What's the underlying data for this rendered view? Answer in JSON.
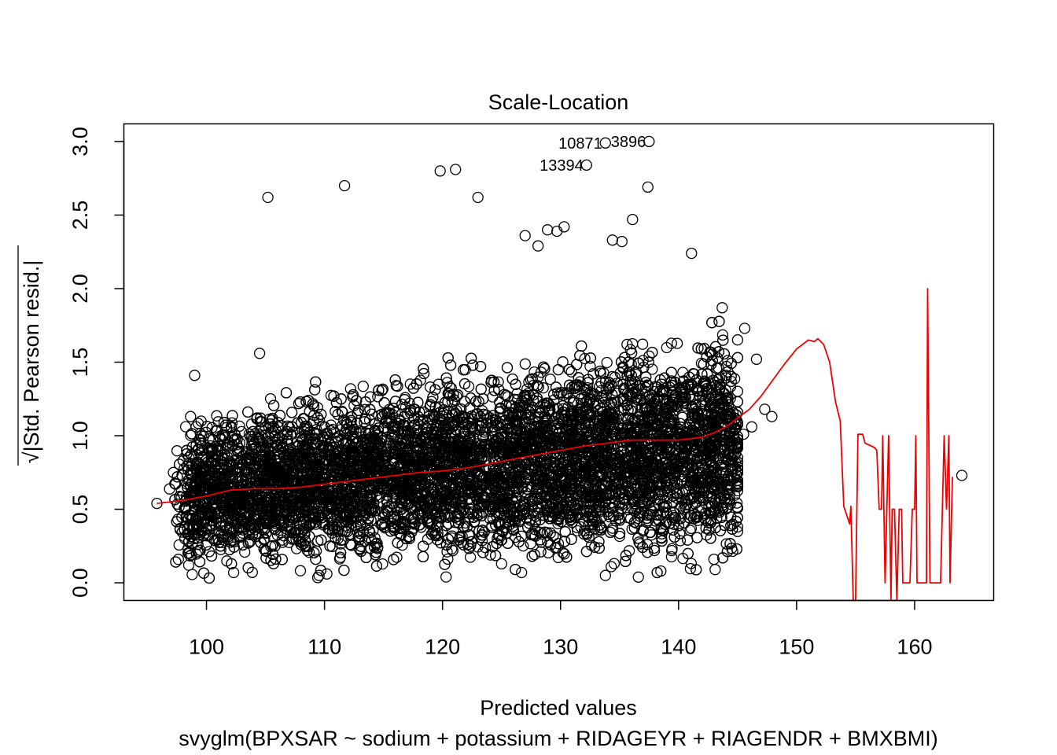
{
  "chart_data": {
    "type": "scatter",
    "title": "Scale-Location",
    "xlabel": "Predicted values",
    "sublabel": "svyglm(BPXSAR ~ sodium + potassium + RIDAGEYR + RIAGENDR + BMXBMI)",
    "ylabel_radical": "√",
    "ylabel": "|Std. Pearson resid.|",
    "xlim": [
      93,
      166.7
    ],
    "ylim": [
      -0.12,
      3.12
    ],
    "x_ticks": [
      {
        "value": 100,
        "label": "100"
      },
      {
        "value": 110,
        "label": "110"
      },
      {
        "value": 120,
        "label": "120"
      },
      {
        "value": 130,
        "label": "130"
      },
      {
        "value": 140,
        "label": "140"
      },
      {
        "value": 150,
        "label": "150"
      },
      {
        "value": 160,
        "label": "160"
      }
    ],
    "y_ticks": [
      {
        "value": 0.0,
        "label": "0.0"
      },
      {
        "value": 0.5,
        "label": "0.5"
      },
      {
        "value": 1.0,
        "label": "1.0"
      },
      {
        "value": 1.5,
        "label": "1.5"
      },
      {
        "value": 2.0,
        "label": "2.0"
      },
      {
        "value": 2.5,
        "label": "2.5"
      },
      {
        "value": 3.0,
        "label": "3.0"
      }
    ],
    "dense_cloud": {
      "x_range": [
        98,
        145
      ],
      "point_count": 9000,
      "y_center_start": 0.62,
      "y_center_end": 0.95,
      "y_spread_start": 0.38,
      "y_spread_end": 0.55
    },
    "outlier_points": [
      {
        "x": 95.8,
        "y": 0.54
      },
      {
        "x": 97.2,
        "y": 0.75
      },
      {
        "x": 98.5,
        "y": 0.12
      },
      {
        "x": 99.0,
        "y": 1.41
      },
      {
        "x": 104.5,
        "y": 1.56
      },
      {
        "x": 105.2,
        "y": 2.62
      },
      {
        "x": 111.7,
        "y": 2.7
      },
      {
        "x": 119.8,
        "y": 2.8
      },
      {
        "x": 121.1,
        "y": 2.81
      },
      {
        "x": 123.0,
        "y": 2.62
      },
      {
        "x": 127.0,
        "y": 2.36
      },
      {
        "x": 128.1,
        "y": 2.29
      },
      {
        "x": 128.9,
        "y": 2.4
      },
      {
        "x": 129.7,
        "y": 2.39
      },
      {
        "x": 130.3,
        "y": 2.42
      },
      {
        "x": 132.2,
        "y": 2.84
      },
      {
        "x": 133.8,
        "y": 2.99
      },
      {
        "x": 137.5,
        "y": 3.0
      },
      {
        "x": 137.4,
        "y": 2.69
      },
      {
        "x": 136.1,
        "y": 2.47
      },
      {
        "x": 134.4,
        "y": 2.33
      },
      {
        "x": 135.2,
        "y": 2.32
      },
      {
        "x": 141.1,
        "y": 2.24
      },
      {
        "x": 143.7,
        "y": 1.87
      },
      {
        "x": 145.6,
        "y": 1.73
      },
      {
        "x": 146.6,
        "y": 1.52
      },
      {
        "x": 147.3,
        "y": 1.18
      },
      {
        "x": 147.9,
        "y": 1.13
      },
      {
        "x": 146.2,
        "y": 1.06
      },
      {
        "x": 145.5,
        "y": 1.01
      },
      {
        "x": 144.6,
        "y": 0.94
      },
      {
        "x": 144.8,
        "y": 0.78
      },
      {
        "x": 145.0,
        "y": 0.38
      },
      {
        "x": 143.0,
        "y": 0.16
      },
      {
        "x": 143.1,
        "y": 0.09
      },
      {
        "x": 164.0,
        "y": 0.73
      },
      {
        "x": 110.2,
        "y": 0.06
      },
      {
        "x": 120.3,
        "y": 0.04
      },
      {
        "x": 126.7,
        "y": 0.07
      },
      {
        "x": 133.8,
        "y": 0.05
      },
      {
        "x": 138.5,
        "y": 0.08
      },
      {
        "x": 102.3,
        "y": 0.07
      }
    ],
    "labeled_points": [
      {
        "x": 132.2,
        "y": 2.84,
        "label": "13394"
      },
      {
        "x": 133.8,
        "y": 2.99,
        "label": "10871"
      },
      {
        "x": 137.5,
        "y": 3.0,
        "label": "3896"
      }
    ],
    "smoother": {
      "color": "#ee0000",
      "points": [
        [
          95.8,
          0.54
        ],
        [
          98,
          0.56
        ],
        [
          100,
          0.59
        ],
        [
          102,
          0.63
        ],
        [
          104,
          0.64
        ],
        [
          106,
          0.64
        ],
        [
          108,
          0.65
        ],
        [
          110,
          0.67
        ],
        [
          112,
          0.69
        ],
        [
          114,
          0.71
        ],
        [
          116,
          0.73
        ],
        [
          118,
          0.75
        ],
        [
          120,
          0.76
        ],
        [
          122,
          0.78
        ],
        [
          124,
          0.81
        ],
        [
          126,
          0.84
        ],
        [
          128,
          0.87
        ],
        [
          130,
          0.9
        ],
        [
          132,
          0.93
        ],
        [
          134,
          0.95
        ],
        [
          136,
          0.97
        ],
        [
          138,
          0.97
        ],
        [
          140,
          0.97
        ],
        [
          142,
          0.99
        ],
        [
          143,
          1.02
        ],
        [
          144,
          1.06
        ],
        [
          145,
          1.12
        ],
        [
          146,
          1.18
        ],
        [
          147,
          1.27
        ],
        [
          148,
          1.38
        ],
        [
          149,
          1.49
        ],
        [
          150,
          1.59
        ],
        [
          151,
          1.65
        ],
        [
          151.5,
          1.64
        ],
        [
          151.8,
          1.66
        ],
        [
          152.3,
          1.62
        ],
        [
          152.8,
          1.5
        ],
        [
          153.3,
          1.23
        ],
        [
          153.7,
          1.1
        ],
        [
          154.0,
          0.52
        ],
        [
          154.5,
          0.4
        ],
        [
          154.6,
          0.52
        ],
        [
          154.8,
          -0.12
        ],
        [
          155.0,
          -0.12
        ],
        [
          155.2,
          1.01
        ],
        [
          155.6,
          1.01
        ],
        [
          155.8,
          0.95
        ],
        [
          156.6,
          0.92
        ],
        [
          156.8,
          0.9
        ],
        [
          157.0,
          0.5
        ],
        [
          157.2,
          0.5
        ],
        [
          157.3,
          1.0
        ],
        [
          157.5,
          0.0
        ],
        [
          157.8,
          1.0
        ],
        [
          158.0,
          -0.12
        ],
        [
          158.1,
          0.5
        ],
        [
          158.3,
          0.5
        ],
        [
          158.5,
          -0.12
        ],
        [
          158.7,
          0.5
        ],
        [
          158.9,
          0.5
        ],
        [
          159.0,
          0.0
        ],
        [
          159.6,
          0.0
        ],
        [
          159.8,
          0.5
        ],
        [
          160.0,
          0.5
        ],
        [
          160.1,
          1.0
        ],
        [
          160.2,
          0.0
        ],
        [
          161.0,
          0.0
        ],
        [
          161.1,
          2.0
        ],
        [
          161.3,
          0.0
        ],
        [
          162.2,
          0.0
        ],
        [
          162.5,
          1.0
        ],
        [
          162.7,
          0.5
        ],
        [
          162.9,
          1.0
        ],
        [
          163.0,
          0.0
        ],
        [
          163.2,
          0.72
        ]
      ]
    }
  }
}
